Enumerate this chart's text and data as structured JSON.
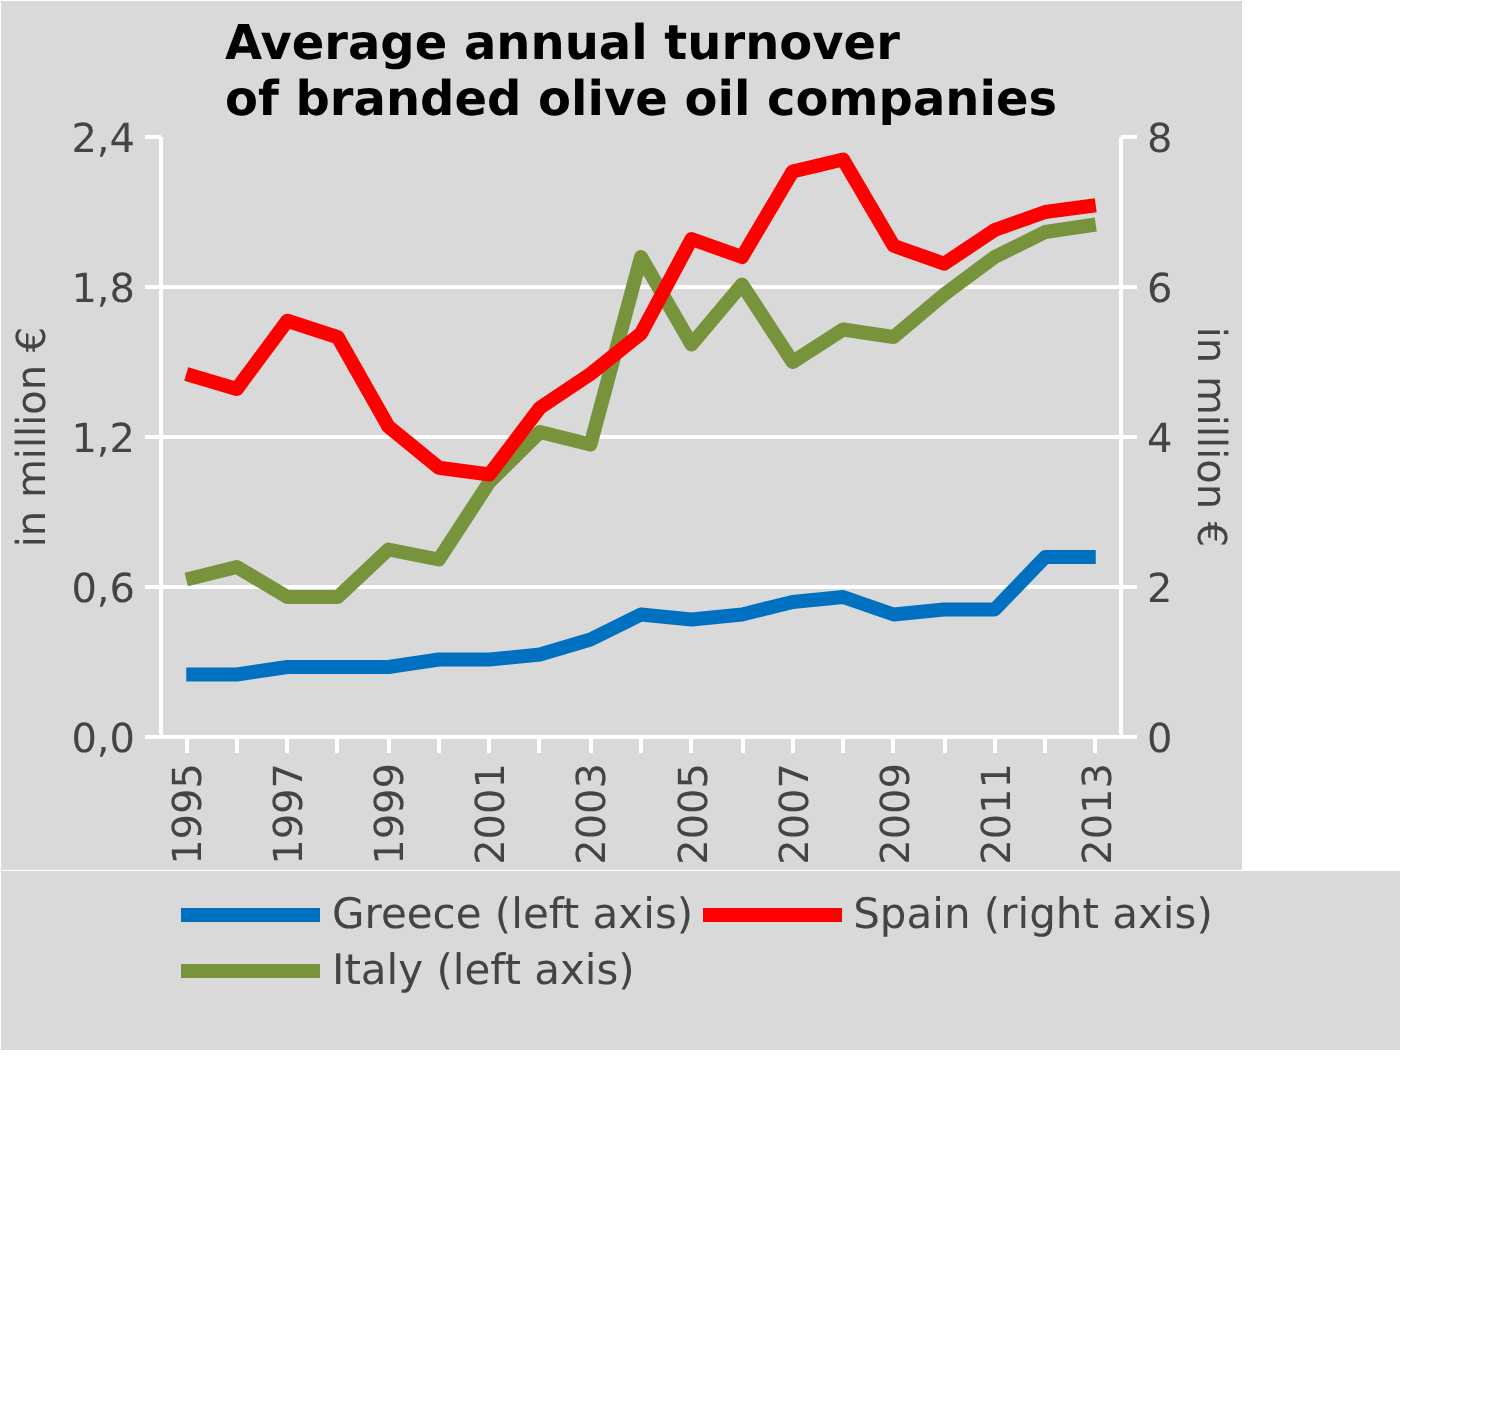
{
  "chart_data": {
    "type": "line",
    "title": "Average annual turnover\nof branded olive oil companies",
    "ylabel": "in million €",
    "y2label": "in million €",
    "x": [
      1995,
      1996,
      1997,
      1998,
      1999,
      2000,
      2001,
      2002,
      2003,
      2004,
      2005,
      2006,
      2007,
      2008,
      2009,
      2010,
      2011,
      2012,
      2013
    ],
    "xlim": [
      1994.5,
      2013.5
    ],
    "xticks": [
      1995,
      {
        "value": 1996,
        "label": null
      },
      1997,
      {
        "value": 1998,
        "label": null
      },
      1999,
      {
        "value": 2000,
        "label": null
      },
      2001,
      {
        "value": 2002,
        "label": null
      },
      2003,
      {
        "value": 2004,
        "label": null
      },
      2005,
      {
        "value": 2006,
        "label": null
      },
      2007,
      {
        "value": 2008,
        "label": null
      },
      2009,
      {
        "value": 2010,
        "label": null
      },
      2011,
      {
        "value": 2012,
        "label": null
      },
      2013
    ],
    "ylim": [
      0,
      2.4
    ],
    "yticks": [
      {
        "value": 0,
        "label": "0,0"
      },
      {
        "value": 0.6,
        "label": "0,6"
      },
      {
        "value": 1.2,
        "label": "1,2"
      },
      {
        "value": 1.8,
        "label": "1,8"
      },
      {
        "value": 2.4,
        "label": "2,4"
      }
    ],
    "y2lim": [
      0,
      8
    ],
    "y2ticks": [
      0,
      2,
      4,
      6,
      8
    ],
    "series": [
      {
        "name": "Greece (left axis)",
        "color": "#0070c0",
        "values": [
          0.25,
          0.25,
          0.28,
          0.28,
          0.28,
          0.31,
          0.31,
          0.33,
          0.39,
          0.49,
          0.47,
          0.49,
          0.54,
          0.56,
          0.49,
          0.51,
          0.51,
          0.72,
          0.72
        ]
      },
      {
        "name": "Italy (left axis)",
        "color": "#77933c",
        "values": [
          0.63,
          0.68,
          0.56,
          0.56,
          0.75,
          0.71,
          1.02,
          1.22,
          1.17,
          1.92,
          1.57,
          1.81,
          1.5,
          1.63,
          1.6,
          1.77,
          1.92,
          2.02,
          2.05
        ]
      },
      {
        "name": "Spain (right axis)",
        "color": "#ff0000",
        "axis": "y2",
        "values": [
          4.84,
          4.64,
          5.55,
          5.33,
          4.14,
          3.59,
          3.5,
          4.39,
          4.84,
          5.38,
          6.64,
          6.4,
          7.54,
          7.7,
          6.55,
          6.31,
          6.76,
          7.0,
          7.09
        ]
      }
    ],
    "grid": "y",
    "legend": "bottom",
    "marker": "none",
    "line_style": "solid"
  }
}
